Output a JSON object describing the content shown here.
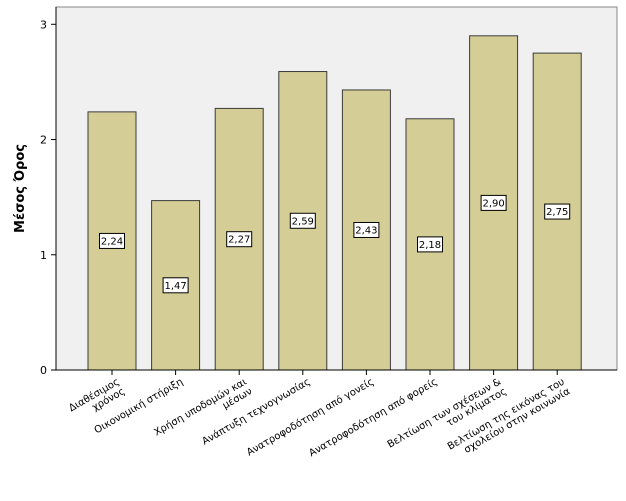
{
  "chart_data": {
    "type": "bar",
    "title": "",
    "xlabel": "",
    "ylabel": "Μέσος Όρος",
    "ylim": [
      0,
      3.15
    ],
    "yticks": [
      0,
      1,
      2,
      3
    ],
    "grid": false,
    "categories": [
      [
        "Διαθέσιμος",
        "χρόνος"
      ],
      [
        "Οικονομική  στήριξη"
      ],
      [
        "Χρήση υποδομών και",
        "μέσων"
      ],
      [
        "Ανάπτυξη τεχνογνωσίας"
      ],
      [
        "Ανατροφοδότηση από γονείς"
      ],
      [
        "Ανατροφοδότηση από φορείς"
      ],
      [
        "Βελτίωση των σχέσεων &",
        "του κλίματος"
      ],
      [
        "Βελτίωση της εικόνας του",
        "σχολείου στην κοινωνία"
      ]
    ],
    "values": [
      2.24,
      1.47,
      2.27,
      2.59,
      2.43,
      2.18,
      2.9,
      2.75
    ],
    "data_labels": [
      "2,24",
      "1,47",
      "2,27",
      "2,59",
      "2,43",
      "2,18",
      "2,90",
      "2,75"
    ],
    "colors": {
      "bar_fill": "#d4cd96",
      "bar_stroke": "#3a3a3a",
      "plot_background": "#f0f0f0",
      "axis": "#000000"
    }
  }
}
